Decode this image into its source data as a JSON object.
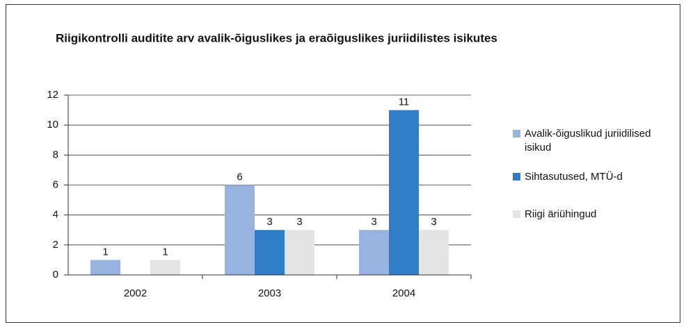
{
  "chart_data": {
    "type": "bar",
    "title": "Riigikontrolli auditite arv avalik-õiguslikes ja eraõiguslikes juriidilistes isikutes",
    "categories": [
      "2002",
      "2003",
      "2004"
    ],
    "series": [
      {
        "name": "Avalik-õiguslikud juriidilised isikud",
        "color": "#98b3e0",
        "values": [
          1,
          6,
          3
        ]
      },
      {
        "name": "Sihtasutused, MTÜ-d",
        "color": "#2e7dc6",
        "values": [
          null,
          3,
          11
        ]
      },
      {
        "name": "Riigi äriühingud",
        "color": "#e3e4e6",
        "values": [
          1,
          3,
          3
        ]
      }
    ],
    "ylim": [
      0,
      12
    ],
    "yticks": [
      0,
      2,
      4,
      6,
      8,
      10,
      12
    ],
    "grid": true,
    "legend": "right"
  }
}
